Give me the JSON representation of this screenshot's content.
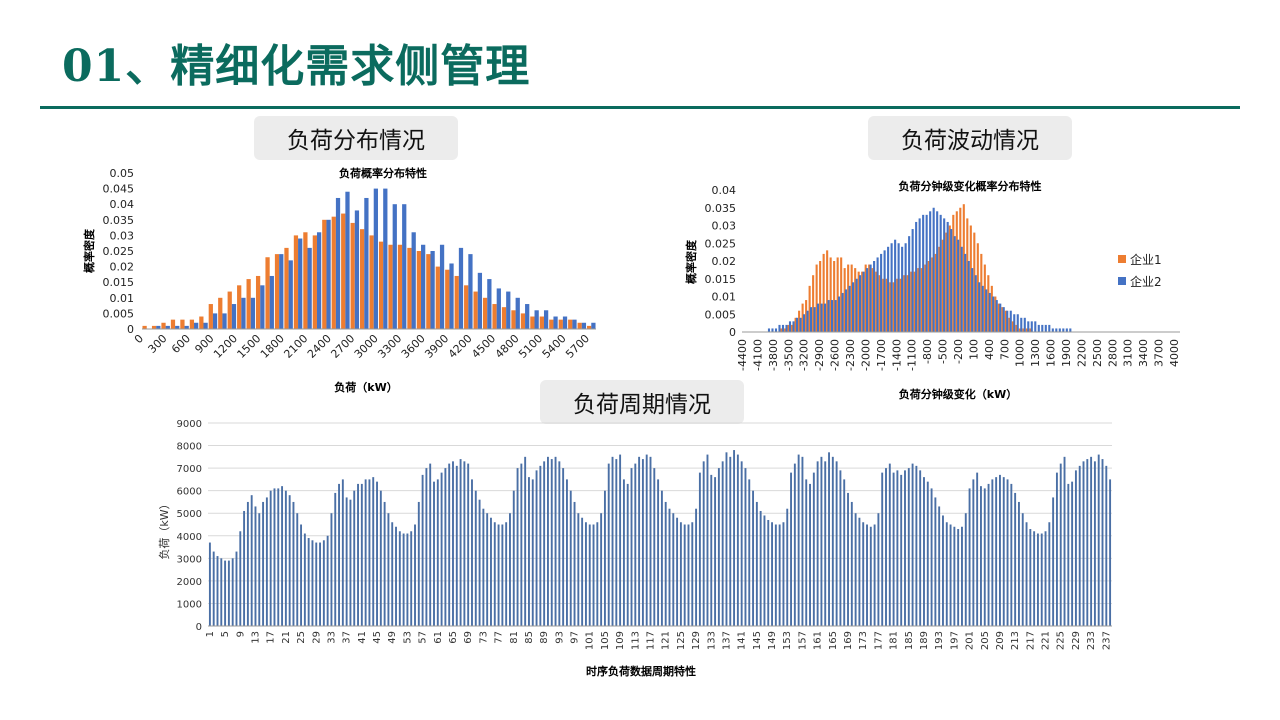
{
  "slide": {
    "title": "01、精细化需求侧管理"
  },
  "sections": {
    "distribution": "负荷分布情况",
    "fluctuation": "负荷波动情况",
    "cycle": "负荷周期情况"
  },
  "colors": {
    "company1": "#ed7d31",
    "company2": "#4472c4",
    "title": "#0b6b5e",
    "cycle": "#4a6fa5"
  },
  "chart_data": [
    {
      "type": "bar",
      "title": "负荷概率分布特性",
      "xlabel": "负荷（kW）",
      "ylabel": "概率密度",
      "ylim": [
        0,
        0.05
      ],
      "yticks": [
        "0",
        "0.005",
        "0.01",
        "0.015",
        "0.02",
        "0.025",
        "0.03",
        "0.035",
        "0.04",
        "0.045",
        "0.05"
      ],
      "xtick_labels": [
        "0",
        "300",
        "600",
        "900",
        "1200",
        "1500",
        "1800",
        "2100",
        "2400",
        "2700",
        "3000",
        "3300",
        "3600",
        "3900",
        "4200",
        "4500",
        "4800",
        "5100",
        "5400",
        "5700"
      ],
      "series": [
        {
          "values": [
            0.001,
            0.001,
            0.002,
            0.003,
            0.003,
            0.003,
            0.004,
            0.008,
            0.01,
            0.012,
            0.014,
            0.016,
            0.017,
            0.023,
            0.024,
            0.026,
            0.03,
            0.031,
            0.03,
            0.035,
            0.036,
            0.037,
            0.034,
            0.032,
            0.03,
            0.028,
            0.027,
            0.027,
            0.026,
            0.025,
            0.024,
            0.02,
            0.019,
            0.017,
            0.014,
            0.012,
            0.01,
            0.008,
            0.007,
            0.006,
            0.005,
            0.004,
            0.004,
            0.003,
            0.003,
            0.003,
            0.002,
            0.001
          ]
        },
        {
          "values": [
            0,
            0.001,
            0.001,
            0.001,
            0.001,
            0.002,
            0.002,
            0.005,
            0.005,
            0.008,
            0.01,
            0.01,
            0.014,
            0.017,
            0.024,
            0.022,
            0.029,
            0.026,
            0.031,
            0.035,
            0.042,
            0.044,
            0.038,
            0.042,
            0.045,
            0.045,
            0.04,
            0.04,
            0.031,
            0.027,
            0.025,
            0.027,
            0.021,
            0.026,
            0.024,
            0.018,
            0.016,
            0.013,
            0.012,
            0.01,
            0.008,
            0.006,
            0.006,
            0.004,
            0.004,
            0.003,
            0.002,
            0.002
          ]
        }
      ]
    },
    {
      "type": "bar",
      "title": "负荷分钟级变化概率分布特性",
      "xlabel": "负荷分钟级变化（kW）",
      "ylabel": "概率密度",
      "ylim": [
        0,
        0.04
      ],
      "yticks": [
        "0",
        "0.005",
        "0.01",
        "0.015",
        "0.02",
        "0.025",
        "0.03",
        "0.035",
        "0.04"
      ],
      "xtick_labels": [
        "-4400",
        "-4100",
        "-3800",
        "-3500",
        "-3200",
        "-2900",
        "-2600",
        "-2300",
        "-2000",
        "-1700",
        "-1400",
        "-1100",
        "-800",
        "-500",
        "-200",
        "100",
        "400",
        "700",
        "1000",
        "1300",
        "1600",
        "1900",
        "2200",
        "2500",
        "2800",
        "3100",
        "3400",
        "3700",
        "4000"
      ],
      "series": [
        {
          "name": "企业1",
          "values": [
            0,
            0,
            0,
            0,
            0,
            0,
            0,
            0,
            0,
            0,
            0,
            0.001,
            0.001,
            0.002,
            0.002,
            0.004,
            0.006,
            0.008,
            0.009,
            0.013,
            0.016,
            0.019,
            0.02,
            0.022,
            0.023,
            0.021,
            0.02,
            0.021,
            0.021,
            0.018,
            0.019,
            0.019,
            0.018,
            0.017,
            0.017,
            0.019,
            0.019,
            0.018,
            0.017,
            0.016,
            0.015,
            0.015,
            0.014,
            0.014,
            0.015,
            0.015,
            0.016,
            0.016,
            0.017,
            0.017,
            0.018,
            0.018,
            0.019,
            0.02,
            0.021,
            0.022,
            0.024,
            0.026,
            0.028,
            0.03,
            0.033,
            0.034,
            0.035,
            0.036,
            0.032,
            0.03,
            0.028,
            0.025,
            0.022,
            0.019,
            0.016,
            0.013,
            0.01,
            0.008,
            0.007,
            0.006,
            0.004,
            0.003,
            0.002,
            0.001,
            0.001,
            0.001,
            0.001,
            0,
            0,
            0,
            0,
            0,
            0,
            0,
            0,
            0,
            0,
            0,
            0,
            0,
            0,
            0,
            0,
            0,
            0,
            0,
            0,
            0,
            0,
            0,
            0,
            0,
            0,
            0,
            0,
            0,
            0,
            0,
            0,
            0,
            0,
            0,
            0,
            0,
            0,
            0,
            0,
            0,
            0
          ]
        },
        {
          "name": "企业2",
          "values": [
            0,
            0,
            0,
            0,
            0,
            0,
            0,
            0.001,
            0.001,
            0.001,
            0.002,
            0.002,
            0.002,
            0.003,
            0.003,
            0.004,
            0.004,
            0.005,
            0.006,
            0.007,
            0.007,
            0.008,
            0.008,
            0.008,
            0.009,
            0.009,
            0.009,
            0.01,
            0.011,
            0.012,
            0.013,
            0.014,
            0.015,
            0.016,
            0.017,
            0.018,
            0.019,
            0.02,
            0.021,
            0.022,
            0.023,
            0.024,
            0.025,
            0.026,
            0.025,
            0.024,
            0.025,
            0.027,
            0.029,
            0.031,
            0.032,
            0.033,
            0.033,
            0.034,
            0.035,
            0.034,
            0.033,
            0.032,
            0.031,
            0.029,
            0.027,
            0.026,
            0.024,
            0.022,
            0.02,
            0.018,
            0.016,
            0.014,
            0.013,
            0.012,
            0.011,
            0.01,
            0.009,
            0.008,
            0.007,
            0.006,
            0.006,
            0.005,
            0.005,
            0.004,
            0.004,
            0.003,
            0.003,
            0.003,
            0.002,
            0.002,
            0.002,
            0.002,
            0.001,
            0.001,
            0.001,
            0.001,
            0.001,
            0.001,
            0,
            0,
            0,
            0,
            0,
            0,
            0,
            0,
            0,
            0,
            0,
            0,
            0,
            0,
            0,
            0,
            0,
            0,
            0,
            0,
            0,
            0,
            0,
            0,
            0,
            0,
            0
          ]
        }
      ],
      "legend": "right"
    },
    {
      "type": "bar",
      "title": "时序负荷数据周期特性",
      "ylabel": "负荷（kW）",
      "ylim": [
        0,
        9000
      ],
      "yticks": [
        "0",
        "1000",
        "2000",
        "3000",
        "4000",
        "5000",
        "6000",
        "7000",
        "8000",
        "9000"
      ],
      "grid": true,
      "xtick_labels": [
        "1",
        "5",
        "9",
        "13",
        "17",
        "21",
        "25",
        "29",
        "33",
        "37",
        "41",
        "45",
        "49",
        "53",
        "57",
        "61",
        "65",
        "69",
        "73",
        "77",
        "81",
        "85",
        "89",
        "93",
        "97",
        "101",
        "105",
        "109",
        "113",
        "117",
        "121",
        "125",
        "129",
        "133",
        "137",
        "141",
        "145",
        "149",
        "153",
        "157",
        "161",
        "165",
        "169",
        "173",
        "177",
        "181",
        "185",
        "189",
        "193",
        "197",
        "201",
        "205",
        "209",
        "213",
        "217",
        "221",
        "225",
        "229",
        "233",
        "237"
      ],
      "values": [
        3700,
        3300,
        3100,
        3000,
        2900,
        2900,
        3000,
        3300,
        4200,
        5100,
        5500,
        5800,
        5300,
        5000,
        5500,
        5700,
        6000,
        6100,
        6100,
        6200,
        6000,
        5800,
        5500,
        5000,
        4500,
        4100,
        3900,
        3800,
        3700,
        3700,
        3800,
        4000,
        5000,
        5900,
        6300,
        6500,
        5700,
        5600,
        6000,
        6300,
        6300,
        6500,
        6500,
        6600,
        6400,
        6000,
        5500,
        5000,
        4600,
        4400,
        4200,
        4100,
        4100,
        4200,
        4500,
        5500,
        6700,
        7000,
        7200,
        6400,
        6500,
        6800,
        7000,
        7200,
        7300,
        7100,
        7400,
        7300,
        7200,
        6500,
        6000,
        5600,
        5200,
        5000,
        4800,
        4600,
        4500,
        4500,
        4600,
        5000,
        6000,
        7000,
        7200,
        7500,
        6600,
        6500,
        6900,
        7100,
        7300,
        7500,
        7400,
        7500,
        7300,
        7000,
        6500,
        6000,
        5500,
        5000,
        4800,
        4600,
        4500,
        4500,
        4600,
        5000,
        6000,
        7200,
        7500,
        7400,
        7600,
        6500,
        6300,
        7000,
        7200,
        7500,
        7400,
        7600,
        7500,
        7000,
        6500,
        6000,
        5500,
        5200,
        5000,
        4800,
        4600,
        4500,
        4500,
        4600,
        5200,
        6800,
        7300,
        7600,
        6700,
        6600,
        7000,
        7300,
        7700,
        7500,
        7800,
        7600,
        7300,
        7000,
        6500,
        6000,
        5500,
        5100,
        4900,
        4700,
        4600,
        4500,
        4500,
        4600,
        5200,
        6800,
        7200,
        7600,
        7500,
        6500,
        6300,
        6800,
        7300,
        7500,
        7300,
        7700,
        7500,
        7300,
        6900,
        6500,
        5900,
        5500,
        5000,
        4800,
        4600,
        4500,
        4400,
        4500,
        5000,
        6800,
        7000,
        7200,
        6800,
        6900,
        6700,
        6900,
        7000,
        7200,
        7100,
        6900,
        6600,
        6400,
        6100,
        5700,
        5300,
        4900,
        4600,
        4500,
        4400,
        4300,
        4400,
        5000,
        6100,
        6500,
        6800,
        6200,
        6100,
        6300,
        6500,
        6600,
        6700,
        6600,
        6500,
        6300,
        5900,
        5500,
        5000,
        4600,
        4300,
        4200,
        4100,
        4100,
        4200,
        4600,
        5700,
        6800,
        7200,
        7500,
        6300,
        6400,
        6900,
        7100,
        7300,
        7400,
        7500,
        7300,
        7600,
        7400,
        7100,
        6500
      ]
    }
  ]
}
